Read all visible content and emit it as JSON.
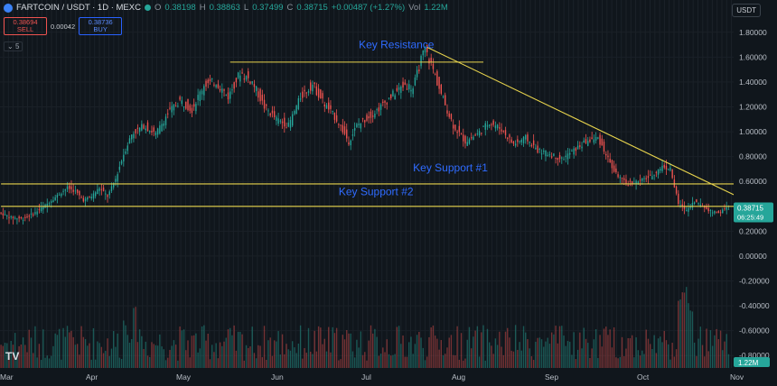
{
  "header": {
    "symbol": "FARTCOIN / USDT · 1D · MEXC",
    "open_label": "O",
    "open": "0.38198",
    "high_label": "H",
    "high": "0.38863",
    "low_label": "L",
    "low": "0.37499",
    "close_label": "C",
    "close": "0.38715",
    "change": "+0.00487 (+1.27%)",
    "volume_label": "Vol",
    "volume": "1.22M"
  },
  "trade": {
    "sell_price": "0.38694",
    "sell_label": "SELL",
    "spread": "0.00042",
    "buy_price": "0.38736",
    "buy_label": "BUY"
  },
  "indicator_count": "5",
  "currency_button": "USDT",
  "colors": {
    "up": "#26a69a",
    "down": "#ef5350",
    "line": "#e8d44d",
    "annotation": "#2f6bff",
    "grid": "#1b2229"
  },
  "chart_data": {
    "type": "candlestick",
    "timeframe": "1D",
    "x_labels": [
      "Mar",
      "Apr",
      "May",
      "Jun",
      "Jul",
      "Aug",
      "Sep",
      "Oct",
      "Nov"
    ],
    "y_ticks": [
      "1.80000",
      "1.60000",
      "1.40000",
      "1.20000",
      "1.00000",
      "0.80000",
      "0.60000",
      "0.40000",
      "0.20000",
      "0.00000",
      "-0.20000",
      "-0.40000",
      "-0.60000",
      "-0.80000"
    ],
    "ylim": [
      -0.9,
      1.9
    ],
    "last_price": "0.38715",
    "countdown": "06:25:49",
    "volume_last": "1.22M",
    "price_path": [
      [
        0,
        0.35
      ],
      [
        6,
        0.31
      ],
      [
        12,
        0.3
      ],
      [
        18,
        0.35
      ],
      [
        24,
        0.42
      ],
      [
        30,
        0.5
      ],
      [
        34,
        0.55
      ],
      [
        38,
        0.52
      ],
      [
        42,
        0.45
      ],
      [
        46,
        0.48
      ],
      [
        50,
        0.55
      ],
      [
        54,
        0.48
      ],
      [
        58,
        0.62
      ],
      [
        62,
        0.82
      ],
      [
        66,
        0.98
      ],
      [
        72,
        1.05
      ],
      [
        78,
        0.98
      ],
      [
        84,
        1.15
      ],
      [
        90,
        1.25
      ],
      [
        96,
        1.18
      ],
      [
        102,
        1.38
      ],
      [
        108,
        1.4
      ],
      [
        114,
        1.28
      ],
      [
        120,
        1.48
      ],
      [
        126,
        1.4
      ],
      [
        132,
        1.2
      ],
      [
        138,
        1.1
      ],
      [
        144,
        1.05
      ],
      [
        150,
        1.28
      ],
      [
        156,
        1.38
      ],
      [
        162,
        1.22
      ],
      [
        168,
        1.1
      ],
      [
        174,
        0.92
      ],
      [
        178,
        1.05
      ],
      [
        184,
        1.12
      ],
      [
        190,
        1.2
      ],
      [
        196,
        1.3
      ],
      [
        202,
        1.38
      ],
      [
        206,
        1.35
      ],
      [
        210,
        1.58
      ],
      [
        212,
        1.66
      ],
      [
        216,
        1.5
      ],
      [
        220,
        1.3
      ],
      [
        226,
        1.05
      ],
      [
        232,
        0.92
      ],
      [
        238,
        0.98
      ],
      [
        244,
        1.08
      ],
      [
        250,
        1.02
      ],
      [
        256,
        0.9
      ],
      [
        262,
        0.95
      ],
      [
        268,
        0.85
      ],
      [
        274,
        0.82
      ],
      [
        280,
        0.78
      ],
      [
        286,
        0.85
      ],
      [
        292,
        0.92
      ],
      [
        298,
        0.95
      ],
      [
        302,
        0.82
      ],
      [
        306,
        0.68
      ],
      [
        312,
        0.58
      ],
      [
        318,
        0.6
      ],
      [
        324,
        0.64
      ],
      [
        330,
        0.72
      ],
      [
        334,
        0.7
      ],
      [
        338,
        0.42
      ],
      [
        342,
        0.37
      ],
      [
        346,
        0.44
      ],
      [
        350,
        0.4
      ],
      [
        354,
        0.36
      ],
      [
        358,
        0.35
      ],
      [
        362,
        0.385
      ]
    ],
    "lines": [
      {
        "name": "Key Resistance",
        "type": "horizontal",
        "y": 1.56,
        "x_from": 114,
        "x_to": 240
      },
      {
        "name": "Key Support #1",
        "type": "horizontal",
        "y": 0.58,
        "x_from": 0,
        "x_to": 370
      },
      {
        "name": "Key Support #2",
        "type": "horizontal",
        "y": 0.4,
        "x_from": 0,
        "x_to": 370
      },
      {
        "name": "Downtrend",
        "type": "trendline",
        "from": [
          212,
          1.68
        ],
        "to": [
          365,
          0.49
        ]
      }
    ],
    "annotations": [
      {
        "text": "Key Resistance",
        "x": 178,
        "y": 1.67
      },
      {
        "text": "Key Support #1",
        "x": 205,
        "y": 0.68
      },
      {
        "text": "Key Support #2",
        "x": 168,
        "y": 0.49
      }
    ]
  }
}
